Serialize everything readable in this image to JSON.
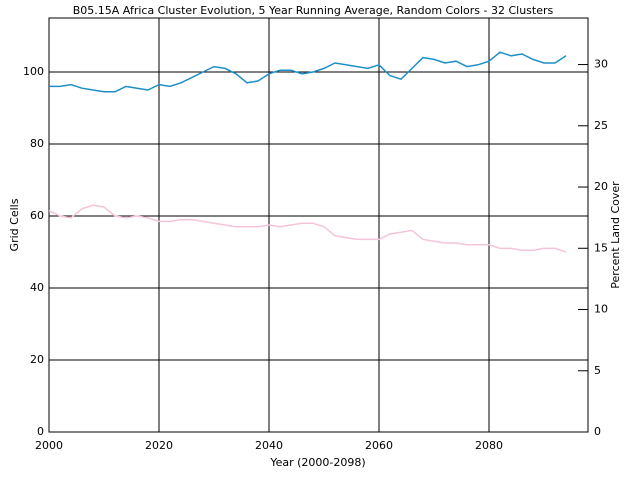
{
  "chart_data": {
    "type": "line",
    "title": "B05.15A Africa Cluster Evolution, 5 Year Running Average, Random Colors - 32 Clusters",
    "xlabel": "Year (2000-2098)",
    "ylabel": "Grid Cells",
    "y2label": "Percent Land Cover",
    "x": [
      2000,
      2002,
      2004,
      2006,
      2008,
      2010,
      2012,
      2014,
      2016,
      2018,
      2020,
      2022,
      2024,
      2026,
      2028,
      2030,
      2032,
      2034,
      2036,
      2038,
      2040,
      2042,
      2044,
      2046,
      2048,
      2050,
      2052,
      2054,
      2056,
      2058,
      2060,
      2062,
      2064,
      2066,
      2068,
      2070,
      2072,
      2074,
      2076,
      2078,
      2080,
      2082,
      2084,
      2086,
      2088,
      2090,
      2092,
      2094
    ],
    "series": [
      {
        "color": "#1e8fc8",
        "values": [
          96,
          96,
          96.5,
          95.5,
          95,
          94.5,
          94.5,
          96,
          95.5,
          95,
          96.5,
          96,
          97,
          98.5,
          100,
          101.5,
          101,
          99.5,
          97,
          97.5,
          99.5,
          100.5,
          100.5,
          99.5,
          100,
          101,
          102.5,
          102,
          101.5,
          101,
          102,
          99,
          98,
          101,
          104,
          103.5,
          102.5,
          103,
          101.5,
          102,
          103,
          105.5,
          104.5,
          105,
          103.5,
          102.5,
          102.5,
          104.5
        ]
      },
      {
        "color": "#f4c4da",
        "values": [
          61.5,
          60,
          59.5,
          62,
          63,
          62.5,
          60,
          59.5,
          60,
          59.5,
          58.5,
          58.5,
          59,
          59,
          58.5,
          58,
          57.5,
          57,
          57,
          57,
          57.5,
          57,
          57.5,
          58,
          58,
          57,
          54.5,
          54,
          53.5,
          53.5,
          53.5,
          55,
          55.5,
          56,
          53.5,
          53,
          52.5,
          52.5,
          52,
          52,
          52,
          51,
          51,
          50.5,
          50.5,
          51,
          51,
          50
        ]
      }
    ],
    "xlim": [
      2000,
      2098
    ],
    "xticks": [
      2000,
      2020,
      2040,
      2060,
      2080
    ],
    "ylim": [
      0,
      115
    ],
    "yticks": [
      0,
      20,
      40,
      60,
      80,
      100
    ],
    "y2lim": [
      0,
      33.8
    ],
    "y2ticks": [
      0,
      5,
      10,
      15,
      20,
      25,
      30
    ],
    "grid": true
  }
}
